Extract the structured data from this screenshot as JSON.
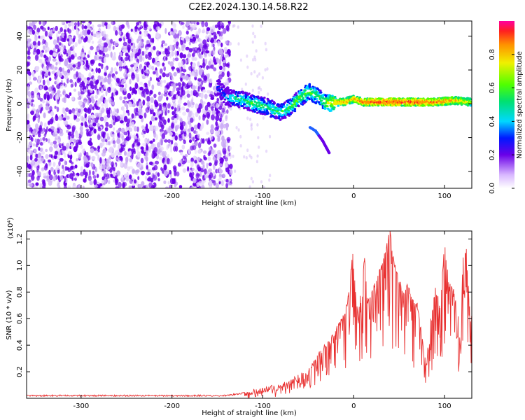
{
  "title": "C2E2.2024.130.14.58.R22",
  "colors": {
    "spec_noise": "#6a00e8",
    "spec_noise_light": "#c9a8f5",
    "snr_line": "#e83030"
  },
  "chart_data": [
    {
      "type": "heatmap",
      "xlabel": "Height of straight line (km)",
      "ylabel": "Frequency (Hz)",
      "xlim": [
        -360,
        130
      ],
      "ylim": [
        -50,
        49
      ],
      "x_ticks": [
        -300,
        -200,
        -100,
        0,
        100
      ],
      "x_tick_labels": [
        "-300",
        "-200",
        "-100",
        "0",
        "100"
      ],
      "y_ticks": [
        40,
        20,
        0,
        -20,
        -40
      ],
      "y_tick_labels": [
        "40",
        "20",
        "0",
        "-20",
        "-40"
      ],
      "colorbar": {
        "label": "Normalized spectral amplitude",
        "range": [
          0,
          1
        ],
        "ticks": [
          0,
          0.2,
          0.4,
          0.6,
          0.8
        ],
        "tick_labels": [
          "0.0",
          "0.2",
          "0.4",
          "0.6",
          "0.8"
        ]
      },
      "noise_region": {
        "x_from": -360,
        "x_to": -135
      },
      "signal_trace": {
        "x": [
          -150,
          -140,
          -130,
          -120,
          -110,
          -100,
          -90,
          -80,
          -70,
          -60,
          -50,
          -40,
          -30,
          -20,
          -10,
          0,
          10,
          30,
          60,
          90,
          110,
          130
        ],
        "y": [
          10,
          4,
          3,
          2,
          0,
          -1,
          -3,
          -5,
          -2,
          3,
          7,
          5,
          0,
          1,
          1,
          3,
          1,
          1,
          1,
          1,
          2,
          1
        ],
        "amplitude": [
          0.25,
          0.35,
          0.45,
          0.45,
          0.5,
          0.5,
          0.5,
          0.45,
          0.5,
          0.55,
          0.55,
          0.5,
          0.6,
          0.75,
          0.8,
          0.75,
          0.85,
          0.9,
          0.9,
          0.85,
          0.8,
          0.7
        ]
      },
      "secondary_branch": {
        "x": [
          -48,
          -42,
          -38,
          -34,
          -30,
          -27
        ],
        "y": [
          -14,
          -16,
          -19,
          -22,
          -26,
          -29
        ]
      }
    },
    {
      "type": "line",
      "xlabel": "Height of straight line (km)",
      "ylabel": "SNR (10 * v/v)",
      "y_multiplier_label": "(x10⁴)",
      "xlim": [
        -360,
        130
      ],
      "ylim": [
        0,
        1.26
      ],
      "x_ticks": [
        -300,
        -200,
        -100,
        0,
        100
      ],
      "x_tick_labels": [
        "-300",
        "-200",
        "-100",
        "0",
        "100"
      ],
      "y_ticks": [
        0.2,
        0.4,
        0.6,
        0.8,
        1.0,
        1.2
      ],
      "y_tick_labels": [
        "0.2",
        "0.4",
        "0.6",
        "0.8",
        "1.0",
        "1.2"
      ],
      "series": [
        {
          "x": [
            -360,
            -300,
            -250,
            -200,
            -160,
            -140,
            -130,
            -120,
            -110,
            -100,
            -90,
            -80,
            -70,
            -60,
            -50,
            -45,
            -40,
            -35,
            -30,
            -25,
            -20,
            -15,
            -10,
            -6,
            -3,
            -1,
            2,
            5,
            8,
            12,
            15,
            20,
            25,
            30,
            35,
            38,
            40,
            43,
            46,
            50,
            55,
            60,
            65,
            70,
            75,
            78,
            80,
            85,
            90,
            95,
            98,
            100,
            105,
            110,
            115,
            118,
            120,
            124,
            127,
            130
          ],
          "y": [
            0.02,
            0.02,
            0.02,
            0.02,
            0.02,
            0.02,
            0.03,
            0.04,
            0.05,
            0.06,
            0.08,
            0.09,
            0.12,
            0.16,
            0.22,
            0.26,
            0.32,
            0.36,
            0.4,
            0.44,
            0.5,
            0.56,
            0.62,
            0.76,
            0.96,
            1.08,
            0.8,
            0.58,
            0.85,
            1.05,
            0.72,
            0.78,
            0.88,
            0.98,
            1.12,
            1.2,
            1.26,
            1.06,
            0.98,
            0.88,
            0.8,
            0.85,
            0.72,
            0.7,
            0.48,
            0.3,
            0.26,
            0.58,
            0.82,
            0.7,
            0.96,
            1.15,
            0.85,
            0.8,
            0.62,
            0.35,
            1.08,
            1.1,
            0.72,
            0.6
          ]
        }
      ]
    }
  ]
}
